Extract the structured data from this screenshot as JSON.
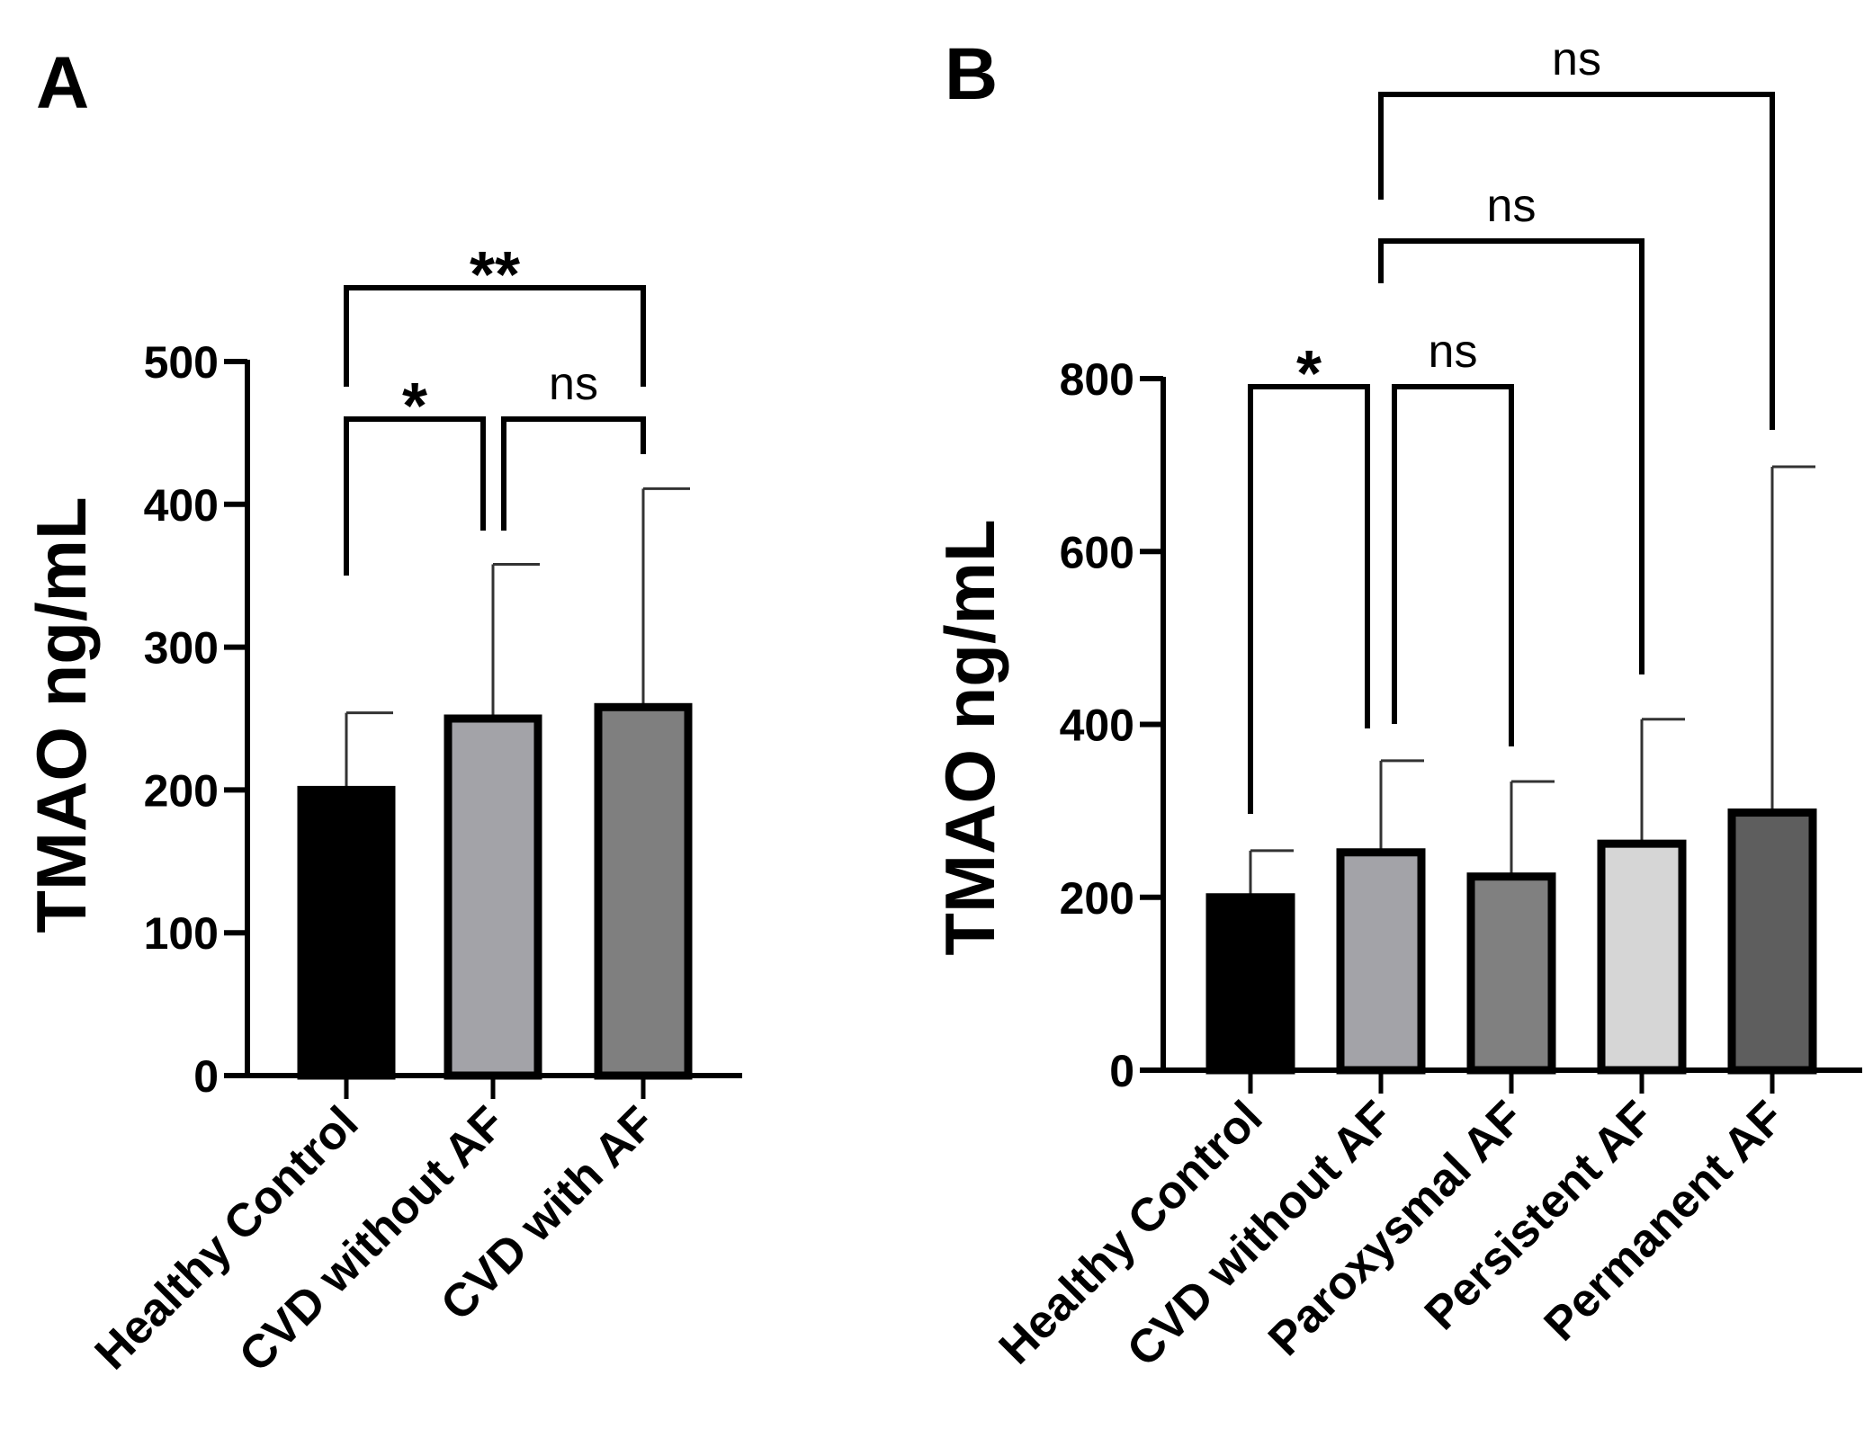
{
  "chart_data": [
    {
      "panel": "A",
      "type": "bar",
      "ylabel": "TMAO ng/mL",
      "ylim": [
        0,
        500
      ],
      "yticks": [
        0,
        100,
        200,
        300,
        400,
        500
      ],
      "categories": [
        "Healthy Control",
        "CVD without AF",
        "CVD with AF"
      ],
      "values": [
        200,
        250,
        258
      ],
      "errors": [
        54,
        108,
        153
      ],
      "colors": [
        "#000000",
        "#a3a3a8",
        "#7f7f7f"
      ],
      "comparisons": [
        {
          "from": 0,
          "to": 1,
          "label": "*"
        },
        {
          "from": 1,
          "to": 2,
          "label": "ns"
        },
        {
          "from": 0,
          "to": 2,
          "label": "**"
        }
      ]
    },
    {
      "panel": "B",
      "type": "bar",
      "ylabel": "TMAO ng/mL",
      "ylim": [
        0,
        800
      ],
      "yticks": [
        0,
        200,
        400,
        600,
        800
      ],
      "categories": [
        "Healthy Control",
        "CVD without AF",
        "Paroxysmal AF",
        "Persistent AF",
        "Permanent AF"
      ],
      "values": [
        200,
        252,
        224,
        262,
        298
      ],
      "errors": [
        54,
        106,
        110,
        144,
        400
      ],
      "colors": [
        "#000000",
        "#a3a3a8",
        "#808080",
        "#d6d6d6",
        "#5e5e5e"
      ],
      "comparisons": [
        {
          "from": 0,
          "to": 1,
          "label": "*"
        },
        {
          "from": 1,
          "to": 2,
          "label": "ns"
        },
        {
          "from": 1,
          "to": 3,
          "label": "ns"
        },
        {
          "from": 1,
          "to": 4,
          "label": "ns"
        }
      ]
    }
  ]
}
